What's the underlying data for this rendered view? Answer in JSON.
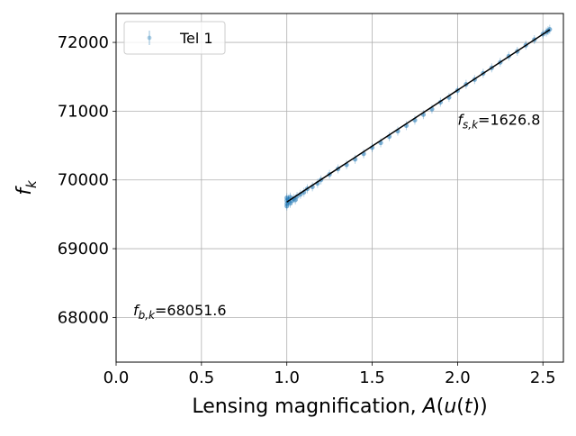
{
  "chart_data": {
    "type": "scatter",
    "xlabel": "Lensing magnification, A(u(t))",
    "ylabel": "f_k",
    "xlim": [
      0.0,
      2.62
    ],
    "ylim": [
      67350,
      72420
    ],
    "xticks": [
      0.0,
      0.5,
      1.0,
      1.5,
      2.0,
      2.5
    ],
    "xtick_labels": [
      "0.0",
      "0.5",
      "1.0",
      "1.5",
      "2.0",
      "2.5"
    ],
    "yticks": [
      68000,
      69000,
      70000,
      71000,
      72000
    ],
    "ytick_labels": [
      "68000",
      "69000",
      "70000",
      "71000",
      "72000"
    ],
    "grid": true,
    "legend_position": "top-left",
    "series": [
      {
        "name": "Tel 1",
        "color": "#1f77b4",
        "marker": "circle-with-errorbar",
        "x_range": [
          1.0,
          2.54
        ],
        "y_range": [
          69600,
          72230
        ],
        "points": [
          [
            1.0,
            69655
          ],
          [
            1.0,
            69700
          ],
          [
            1.0,
            69740
          ],
          [
            1.0,
            69620
          ],
          [
            1.01,
            69680
          ],
          [
            1.01,
            69720
          ],
          [
            1.02,
            69660
          ],
          [
            1.02,
            69750
          ],
          [
            1.03,
            69700
          ],
          [
            1.04,
            69730
          ],
          [
            1.05,
            69710
          ],
          [
            1.06,
            69760
          ],
          [
            1.08,
            69790
          ],
          [
            1.1,
            69820
          ],
          [
            1.12,
            69870
          ],
          [
            1.15,
            69900
          ],
          [
            1.18,
            69950
          ],
          [
            1.2,
            70000
          ],
          [
            1.25,
            70080
          ],
          [
            1.3,
            70160
          ],
          [
            1.35,
            70220
          ],
          [
            1.4,
            70300
          ],
          [
            1.45,
            70380
          ],
          [
            1.5,
            70470
          ],
          [
            1.55,
            70540
          ],
          [
            1.6,
            70630
          ],
          [
            1.65,
            70710
          ],
          [
            1.7,
            70790
          ],
          [
            1.75,
            70870
          ],
          [
            1.8,
            70950
          ],
          [
            1.85,
            71030
          ],
          [
            1.9,
            71130
          ],
          [
            1.95,
            71200
          ],
          [
            2.0,
            71300
          ],
          [
            2.05,
            71390
          ],
          [
            2.1,
            71460
          ],
          [
            2.15,
            71550
          ],
          [
            2.2,
            71630
          ],
          [
            2.25,
            71710
          ],
          [
            2.3,
            71800
          ],
          [
            2.35,
            71870
          ],
          [
            2.4,
            71960
          ],
          [
            2.45,
            72040
          ],
          [
            2.5,
            72120
          ],
          [
            2.52,
            72150
          ],
          [
            2.53,
            72170
          ],
          [
            2.54,
            72190
          ]
        ]
      },
      {
        "name": "",
        "type": "line",
        "color": "#000000",
        "x": [
          1.0,
          2.54
        ],
        "y": [
          69678.4,
          72183.6
        ]
      }
    ],
    "annotations": [
      {
        "label": "f_{s,k}",
        "value_text": "=1626.8",
        "x": 2.0,
        "y": 70800
      },
      {
        "label": "f_{b,k}",
        "value_text": "=68051.6",
        "x": 0.1,
        "y": 68030
      }
    ]
  }
}
